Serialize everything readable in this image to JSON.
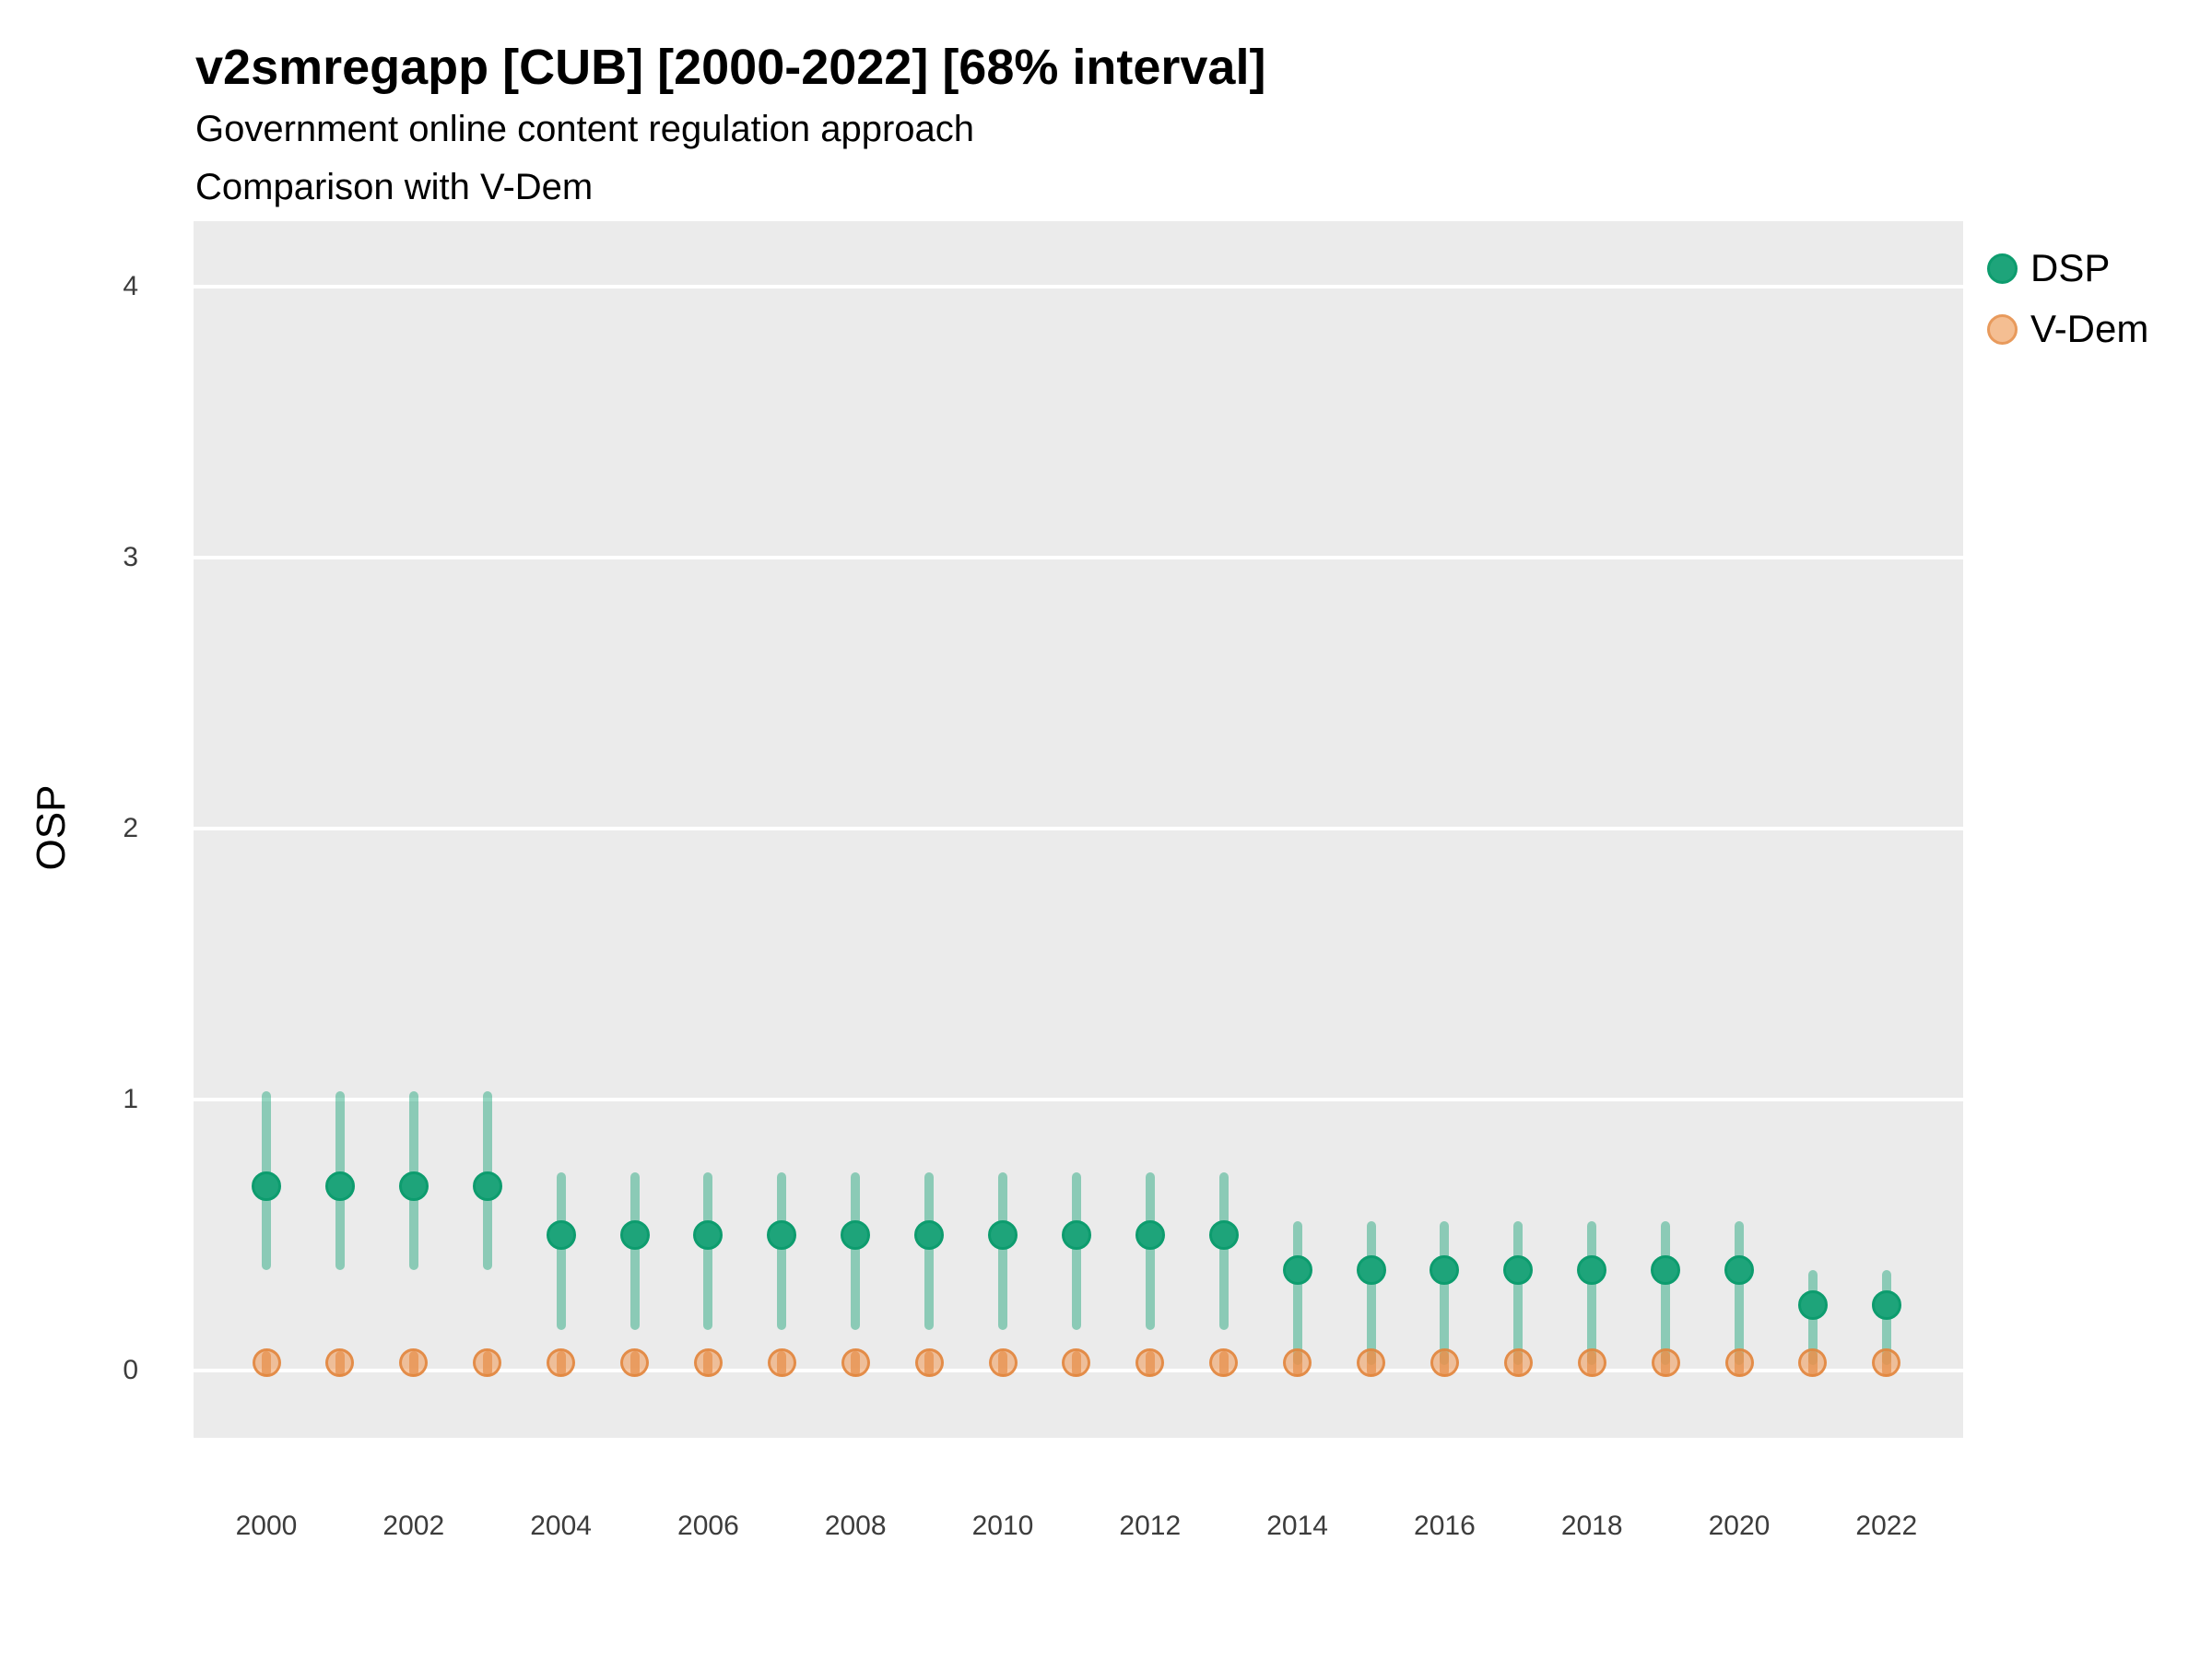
{
  "title": "v2smregapp [CUB] [2000-2022] [68% interval]",
  "subtitle_line1": "Government online content regulation approach",
  "subtitle_line2": "Comparison with V-Dem",
  "colors": {
    "panel_background": "#EBEBEB",
    "gridline": "#FFFFFF",
    "dsp_point_fill": "#1EA47A",
    "dsp_point_stroke": "#0D9C6E",
    "dsp_interval": "#8DCCB1",
    "vdem_point_fill": "#F2B184",
    "vdem_point_stroke": "#E2873E",
    "vdem_interval": "#DB8743",
    "axis_text": "#3c3c3c",
    "title_text": "#000000"
  },
  "chart_data": {
    "type": "scatter",
    "title": "v2smregapp [CUB] [2000-2022] [68% interval]",
    "subtitle": [
      "Government online content regulation approach",
      "Comparison with V-Dem"
    ],
    "xlabel": "",
    "ylabel": "OSP",
    "interval_level": "68%",
    "x": [
      2000,
      2001,
      2002,
      2003,
      2004,
      2005,
      2006,
      2007,
      2008,
      2009,
      2010,
      2011,
      2012,
      2013,
      2014,
      2015,
      2016,
      2017,
      2018,
      2019,
      2020,
      2021,
      2022
    ],
    "x_tick_labels": [
      "2000",
      "2002",
      "2004",
      "2006",
      "2008",
      "2010",
      "2012",
      "2014",
      "2016",
      "2018",
      "2020",
      "2022"
    ],
    "x_tick_years": [
      2000,
      2002,
      2004,
      2006,
      2008,
      2010,
      2012,
      2014,
      2016,
      2018,
      2020,
      2022
    ],
    "xlim": [
      1999,
      2023
    ],
    "yticks": [
      0,
      1,
      2,
      3,
      4
    ],
    "ytick_labels": [
      "0",
      "1",
      "2",
      "3",
      "4"
    ],
    "ylim": [
      -0.25,
      4.24
    ],
    "grid": "major-horizontal",
    "legend_position": "right",
    "series": [
      {
        "name": "DSP",
        "values": [
          0.68,
          0.68,
          0.68,
          0.68,
          0.5,
          0.5,
          0.5,
          0.5,
          0.5,
          0.5,
          0.5,
          0.5,
          0.5,
          0.5,
          0.37,
          0.37,
          0.37,
          0.37,
          0.37,
          0.37,
          0.37,
          0.24,
          0.24
        ],
        "lower": [
          0.37,
          0.37,
          0.37,
          0.37,
          0.15,
          0.15,
          0.15,
          0.15,
          0.15,
          0.15,
          0.15,
          0.15,
          0.15,
          0.15,
          0.02,
          0.02,
          0.02,
          0.02,
          0.02,
          0.02,
          0.02,
          0.02,
          0.02
        ],
        "upper": [
          1.03,
          1.03,
          1.03,
          1.03,
          0.73,
          0.73,
          0.73,
          0.73,
          0.73,
          0.73,
          0.73,
          0.73,
          0.73,
          0.73,
          0.55,
          0.55,
          0.55,
          0.55,
          0.55,
          0.55,
          0.55,
          0.37,
          0.37
        ]
      },
      {
        "name": "V-Dem",
        "values": [
          0.03,
          0.03,
          0.03,
          0.03,
          0.03,
          0.03,
          0.03,
          0.03,
          0.03,
          0.03,
          0.03,
          0.03,
          0.03,
          0.03,
          0.03,
          0.03,
          0.03,
          0.03,
          0.03,
          0.03,
          0.03,
          0.03,
          0.03
        ],
        "lower": [
          0.0,
          0.0,
          0.0,
          0.0,
          0.0,
          0.0,
          0.0,
          0.0,
          0.0,
          0.0,
          0.0,
          0.0,
          0.0,
          0.0,
          0.0,
          0.0,
          0.0,
          0.0,
          0.0,
          0.0,
          0.0,
          0.0,
          0.0
        ],
        "upper": [
          0.07,
          0.07,
          0.07,
          0.07,
          0.07,
          0.07,
          0.07,
          0.07,
          0.07,
          0.07,
          0.07,
          0.07,
          0.07,
          0.07,
          0.07,
          0.07,
          0.07,
          0.07,
          0.07,
          0.07,
          0.07,
          0.07,
          0.07
        ]
      }
    ]
  }
}
